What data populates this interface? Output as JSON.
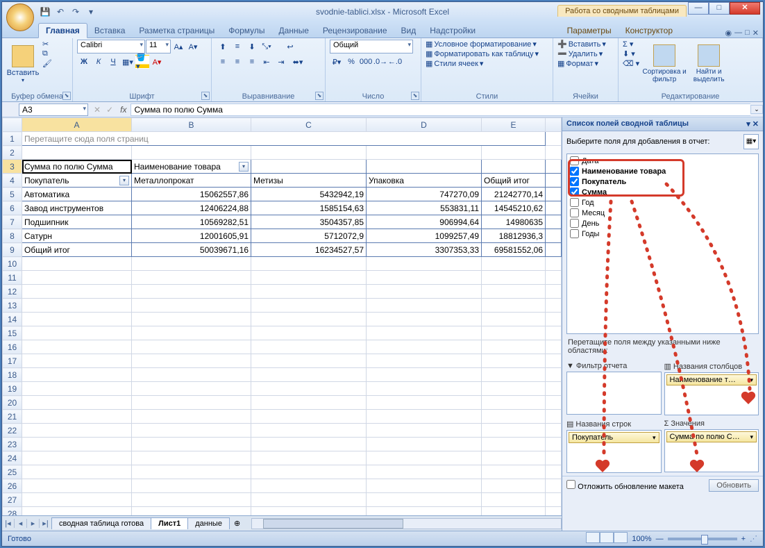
{
  "window": {
    "filename": "svodnie-tablici.xlsx",
    "app": "Microsoft Excel",
    "context_tab_group": "Работа со сводными таблицами"
  },
  "tabs": {
    "items": [
      "Главная",
      "Вставка",
      "Разметка страницы",
      "Формулы",
      "Данные",
      "Рецензирование",
      "Вид",
      "Надстройки"
    ],
    "context_items": [
      "Параметры",
      "Конструктор"
    ],
    "active": "Главная"
  },
  "ribbon": {
    "clipboard": {
      "label": "Буфер обмена",
      "paste": "Вставить"
    },
    "font": {
      "label": "Шрифт",
      "family": "Calibri",
      "size": "11",
      "bold": "Ж",
      "italic": "К",
      "underline": "Ч"
    },
    "alignment": {
      "label": "Выравнивание"
    },
    "number": {
      "label": "Число",
      "format": "Общий"
    },
    "styles": {
      "label": "Стили",
      "conditional": "Условное форматирование",
      "format_table": "Форматировать как таблицу",
      "cell_styles": "Стили ячеек"
    },
    "cells": {
      "label": "Ячейки",
      "insert": "Вставить",
      "delete": "Удалить",
      "format": "Формат"
    },
    "editing": {
      "label": "Редактирование",
      "sort": "Сортировка и фильтр",
      "find": "Найти и выделить"
    }
  },
  "formula_bar": {
    "name_box": "A3",
    "formula": "Сумма по полю Сумма"
  },
  "pivot": {
    "page_prompt": "Перетащите сюда поля страниц",
    "data_field": "Сумма по полю Сумма",
    "col_field": "Наименование товара",
    "row_field": "Покупатель",
    "columns": [
      "Металлопрокат",
      "Метизы",
      "Упаковка",
      "Общий итог"
    ],
    "rows": [
      {
        "label": "Автоматика",
        "v": [
          "15062557,86",
          "5432942,19",
          "747270,09",
          "21242770,14"
        ]
      },
      {
        "label": "Завод инструментов",
        "v": [
          "12406224,88",
          "1585154,63",
          "553831,11",
          "14545210,62"
        ]
      },
      {
        "label": "Подшипник",
        "v": [
          "10569282,51",
          "3504357,85",
          "906994,64",
          "14980635"
        ]
      },
      {
        "label": "Сатурн",
        "v": [
          "12001605,91",
          "5712072,9",
          "1099257,49",
          "18812936,3"
        ]
      }
    ],
    "total_label": "Общий итог",
    "totals": [
      "50039671,16",
      "16234527,57",
      "3307353,33",
      "69581552,06"
    ]
  },
  "sheets": {
    "items": [
      "сводная таблица готова",
      "Лист1",
      "данные"
    ],
    "active": "Лист1"
  },
  "task_pane": {
    "title": "Список полей сводной таблицы",
    "choose_label": "Выберите поля для добавления в отчет:",
    "fields": [
      {
        "name": "Дата",
        "checked": false
      },
      {
        "name": "Наименование товара",
        "checked": true
      },
      {
        "name": "Покупатель",
        "checked": true
      },
      {
        "name": "Сумма",
        "checked": true
      },
      {
        "name": "Год",
        "checked": false
      },
      {
        "name": "Месяц",
        "checked": false
      },
      {
        "name": "День",
        "checked": false
      },
      {
        "name": "Годы",
        "checked": false
      }
    ],
    "drag_instructions": "Перетащите поля между указанными ниже областями:",
    "zones": {
      "filter": "Фильтр отчета",
      "columns": "Названия столбцов",
      "rows": "Названия строк",
      "values": "Значения"
    },
    "zone_items": {
      "columns": "Наименование т…",
      "rows": "Покупатель",
      "values": "Сумма по полю С…"
    },
    "defer": "Отложить обновление макета",
    "update": "Обновить"
  },
  "status": {
    "ready": "Готово",
    "zoom": "100%"
  },
  "colors": {
    "accent": "#15428b",
    "highlight": "#d43a2a",
    "ribbon_bg": "#eaf2fb"
  }
}
